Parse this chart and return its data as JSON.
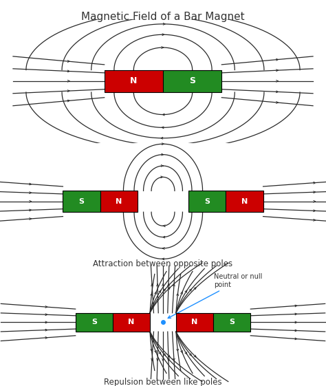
{
  "title": "Magnetic Field of a Bar Magnet",
  "title_fontsize": 11,
  "background_color": "#ffffff",
  "magnet_red": "#cc0000",
  "magnet_green": "#228B22",
  "line_color": "#2a2a2a",
  "text_color": "#333333",
  "label1": "Attraction between opposite poles",
  "label2": "Repulsion between like poles",
  "neutral_label": "Neutral or null\npoint",
  "annotation_color": "#1E90FF"
}
